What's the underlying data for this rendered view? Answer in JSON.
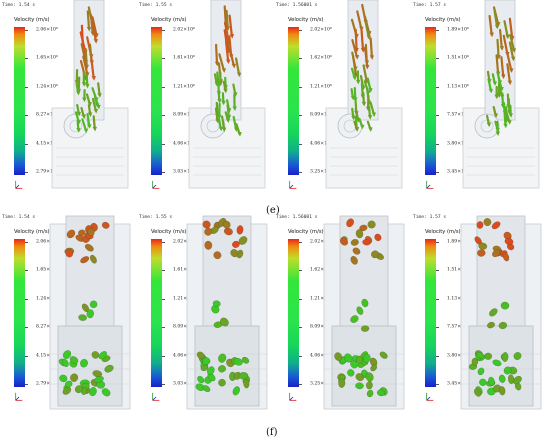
{
  "captions": {
    "e": "(e)",
    "f": "(f)"
  },
  "colorbar_title": "Velocity (m/s)",
  "rows": [
    {
      "name": "row-e",
      "panels": [
        {
          "time": "Time: 1.54 s",
          "ticks": [
            "2.06×10⁰",
            "1.65×10⁰",
            "1.24×10⁰",
            "8.27×10⁻¹",
            "4.15×10⁻¹",
            "2.79×10⁻³"
          ]
        },
        {
          "time": "Time: 1.55 s",
          "ticks": [
            "2.02×10⁰",
            "1.61×10⁰",
            "1.21×10⁰",
            "8.09×10⁻¹",
            "4.06×10⁻¹",
            "3.03×10⁻³"
          ]
        },
        {
          "time": "Time: 1.56001 s",
          "ticks": [
            "2.02×10⁰",
            "1.62×10⁰",
            "1.21×10⁰",
            "8.09×10⁻¹",
            "4.06×10⁻¹",
            "3.25×10⁻³"
          ]
        },
        {
          "time": "Time: 1.57 s",
          "ticks": [
            "1.89×10⁰",
            "1.51×10⁰",
            "1.13×10⁰",
            "7.57×10⁻¹",
            "3.80×10⁻¹",
            "3.45×10⁻³"
          ]
        }
      ]
    },
    {
      "name": "row-f",
      "panels": [
        {
          "time": "Time: 1.54 s",
          "ticks": [
            "2.06×10⁰",
            "1.65×10⁰",
            "1.24×10⁰",
            "8.27×10⁻¹",
            "4.15×10⁻¹",
            "2.79×10⁻³"
          ]
        },
        {
          "time": "Time: 1.55 s",
          "ticks": [
            "2.02×10⁰",
            "1.61×10⁰",
            "1.21×10⁰",
            "8.09×10⁻¹",
            "4.06×10⁻¹",
            "3.03×10⁻³"
          ]
        },
        {
          "time": "Time: 1.56001 s",
          "ticks": [
            "2.02×10⁰",
            "1.62×10⁰",
            "1.21×10⁰",
            "8.09×10⁻¹",
            "4.06×10⁻¹",
            "3.25×10⁻³"
          ]
        },
        {
          "time": "Time: 1.57 s",
          "ticks": [
            "1.89×10⁰",
            "1.51×10⁰",
            "1.13×10⁰",
            "7.57×10⁻¹",
            "3.80×10⁻¹",
            "3.45×10⁻³"
          ]
        }
      ]
    }
  ]
}
